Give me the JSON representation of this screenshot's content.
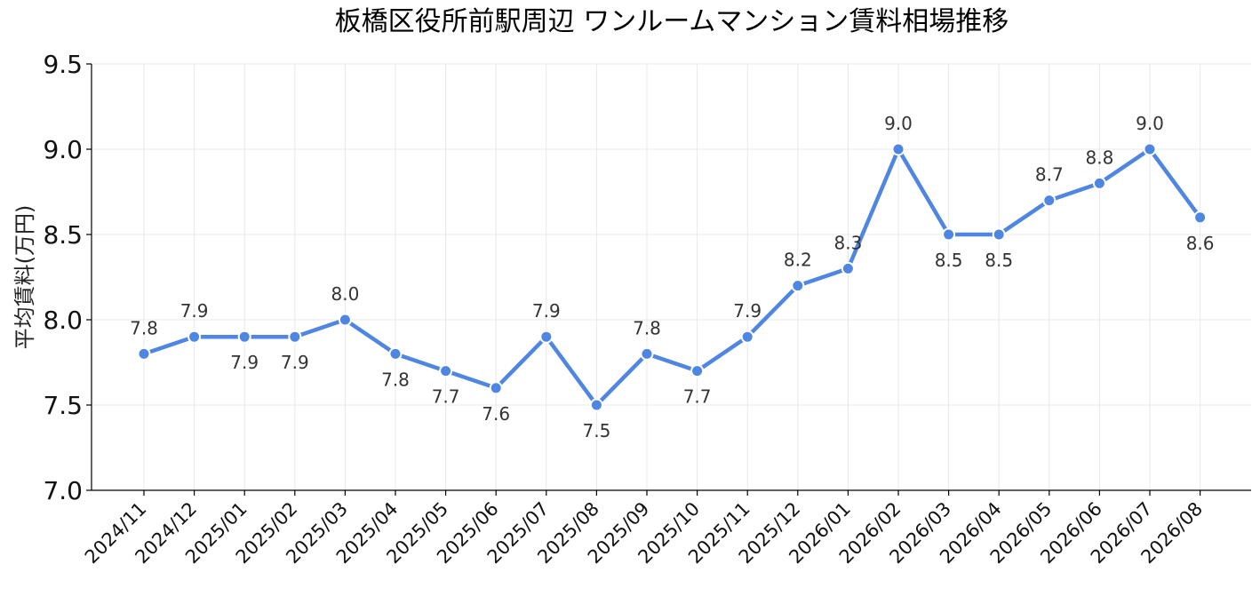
{
  "chart_data": {
    "type": "line",
    "title": "板橋区役所前駅周辺 ワンルームマンション賃料相場推移",
    "xlabel": "",
    "ylabel": "平均賃料(万円)",
    "ylim": [
      7.0,
      9.5
    ],
    "yticks": [
      "7.0",
      "7.5",
      "8.0",
      "8.5",
      "9.0",
      "9.5"
    ],
    "grid": true,
    "legend": "none",
    "color": "#4f86e1",
    "categories": [
      "2024/11",
      "2024/12",
      "2025/01",
      "2025/02",
      "2025/03",
      "2025/04",
      "2025/05",
      "2025/06",
      "2025/07",
      "2025/08",
      "2025/09",
      "2025/10",
      "2025/11",
      "2025/12",
      "2026/01",
      "2026/02",
      "2026/03",
      "2026/04",
      "2026/05",
      "2026/06",
      "2026/07",
      "2026/08"
    ],
    "series": [
      {
        "values": [
          7.8,
          7.9,
          7.9,
          7.9,
          8.0,
          7.8,
          7.7,
          7.6,
          7.9,
          7.5,
          7.8,
          7.7,
          7.9,
          8.2,
          8.3,
          9.0,
          8.5,
          8.5,
          8.7,
          8.8,
          9.0,
          8.6
        ],
        "labels": [
          "7.8",
          "7.9",
          "7.9",
          "7.9",
          "8.0",
          "7.8",
          "7.7",
          "7.6",
          "7.9",
          "7.5",
          "7.8",
          "7.7",
          "7.9",
          "8.2",
          "8.3",
          "9.0",
          "8.5",
          "8.5",
          "8.7",
          "8.8",
          "9.0",
          "8.6"
        ]
      }
    ]
  }
}
